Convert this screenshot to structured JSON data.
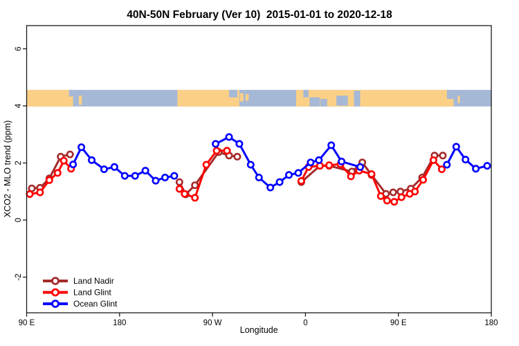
{
  "title": "40N-50N February (Ver 10)  2015-01-01 to 2020-12-18",
  "axes": {
    "x": {
      "label": "Longitude",
      "range_deg_east": [
        90,
        540
      ],
      "ticks": [
        {
          "lon": 90,
          "label": "90 E"
        },
        {
          "lon": 180,
          "label": "180"
        },
        {
          "lon": 270,
          "label": "90 W"
        },
        {
          "lon": 360,
          "label": "0"
        },
        {
          "lon": 450,
          "label": "90 E"
        },
        {
          "lon": 540,
          "label": "180"
        }
      ]
    },
    "y": {
      "label": "XCO2 - MLO trend (ppm)",
      "ticks": [
        "-2",
        "0",
        "2",
        "4",
        "6"
      ],
      "tick_values": [
        -2,
        0,
        2,
        4,
        6
      ],
      "range": [
        -3.25,
        6.8
      ]
    }
  },
  "legend": {
    "position": "bottom-left",
    "items": [
      {
        "label": "Land Nadir",
        "color": "#A52A2A"
      },
      {
        "label": "Land Glint",
        "color": "#FF0000"
      },
      {
        "label": "Ocean Glint",
        "color": "#0000FF"
      }
    ]
  },
  "chart_data": {
    "type": "line",
    "title": "40N-50N February (Ver 10)  2015-01-01 to 2020-12-18",
    "xlabel": "Longitude",
    "ylabel": "XCO2 - MLO trend (ppm)",
    "xlim_deg_east": [
      90,
      540
    ],
    "ylim": [
      -3.25,
      6.8
    ],
    "grid": false,
    "x_note": "x is continuous longitude in degrees east starting at 90E and wrapping past the dateline to 180 (540)",
    "map_band": {
      "description": "40N-50N latitude world strip: land=tan, ocean=blue-gray",
      "value_top": 4.56,
      "value_bottom": 3.98,
      "land_color": "#FBD086",
      "ocean_color": "#A5B8D6",
      "land_segments": [
        [
          90,
          135
        ],
        [
          236,
          296
        ],
        [
          351,
          503.5
        ]
      ],
      "ocean_patches": [
        [
          131,
          135,
          0.0,
          0.4
        ],
        [
          286,
          294,
          0.0,
          0.45
        ],
        [
          358,
          363,
          0.0,
          0.45
        ],
        [
          364,
          374,
          0.45,
          1.0
        ],
        [
          374.5,
          381,
          0.55,
          1.0
        ],
        [
          390,
          401,
          0.35,
          0.95
        ],
        [
          407,
          413,
          0.05,
          1.0
        ],
        [
          497,
          503.5,
          0.0,
          0.55
        ]
      ],
      "land_patches": [
        [
          140.5,
          143.5,
          0.35,
          0.9
        ],
        [
          296.5,
          300,
          0.2,
          0.7
        ],
        [
          302,
          305,
          0.25,
          0.65
        ],
        [
          507.5,
          509.5,
          0.35,
          0.8
        ]
      ]
    },
    "series": [
      {
        "id": "land-nadir",
        "name": "Land Nadir",
        "color": "#A52A2A",
        "marker": "open-circle",
        "segments": [
          [
            [
              95,
              1.11
            ],
            [
              103,
              1.13
            ],
            [
              112,
              1.46
            ],
            [
              123,
              2.22
            ],
            [
              132,
              2.3
            ]
          ],
          [
            [
              238,
              1.33
            ],
            [
              244,
              0.9
            ],
            [
              253,
              1.22
            ],
            [
              276,
              2.38
            ],
            [
              286,
              2.26
            ],
            [
              294,
              2.22
            ]
          ],
          [
            [
              356,
              1.33
            ],
            [
              374,
              1.9
            ],
            [
              383,
              1.9
            ],
            [
              405,
              1.7
            ],
            [
              415,
              2.02
            ],
            [
              424,
              1.58
            ],
            [
              438,
              0.92
            ],
            [
              445,
              0.97
            ],
            [
              452,
              1.0
            ],
            [
              462,
              1.1
            ],
            [
              473,
              1.49
            ],
            [
              485,
              2.26
            ],
            [
              493,
              2.26
            ]
          ]
        ]
      },
      {
        "id": "land-glint",
        "name": "Land Glint",
        "color": "#FF0000",
        "marker": "open-circle",
        "segments": [
          [
            [
              93,
              0.91
            ],
            [
              103,
              0.97
            ],
            [
              112,
              1.4
            ],
            [
              120,
              1.65
            ],
            [
              126,
              2.08
            ],
            [
              133,
              1.8
            ]
          ],
          [
            [
              238,
              1.09
            ],
            [
              243,
              0.92
            ],
            [
              253,
              0.78
            ],
            [
              264,
              1.94
            ],
            [
              274,
              2.43
            ],
            [
              284,
              2.43
            ]
          ],
          [
            [
              356,
              1.37
            ],
            [
              363,
              1.86
            ],
            [
              374,
              1.9
            ],
            [
              383,
              1.92
            ],
            [
              394,
              1.96
            ],
            [
              404,
              1.53
            ],
            [
              412,
              1.73
            ],
            [
              424,
              1.61
            ],
            [
              433,
              0.84
            ],
            [
              439,
              0.68
            ],
            [
              446,
              0.64
            ],
            [
              453,
              0.8
            ],
            [
              461,
              0.92
            ],
            [
              466,
              1.0
            ],
            [
              474,
              1.41
            ],
            [
              484,
              2.1
            ],
            [
              492,
              1.78
            ]
          ]
        ]
      },
      {
        "id": "ocean-glint",
        "name": "Ocean Glint",
        "color": "#0000FF",
        "marker": "open-circle",
        "segments": [
          [
            [
              135,
              1.95
            ],
            [
              143,
              2.55
            ],
            [
              153,
              2.1
            ],
            [
              165,
              1.78
            ],
            [
              175,
              1.86
            ],
            [
              185,
              1.55
            ],
            [
              195,
              1.55
            ],
            [
              205,
              1.73
            ],
            [
              215,
              1.38
            ],
            [
              224,
              1.49
            ],
            [
              233,
              1.55
            ]
          ],
          [
            [
              273,
              2.67
            ],
            [
              286,
              2.91
            ],
            [
              296,
              2.67
            ],
            [
              307,
              1.94
            ],
            [
              315,
              1.49
            ],
            [
              326,
              1.14
            ],
            [
              335,
              1.33
            ],
            [
              344,
              1.58
            ],
            [
              353,
              1.65
            ],
            [
              365,
              2.02
            ],
            [
              373,
              2.1
            ],
            [
              385,
              2.62
            ],
            [
              395,
              2.05
            ],
            [
              413,
              1.86
            ]
          ],
          [
            [
              497,
              1.94
            ],
            [
              506,
              2.57
            ],
            [
              515,
              2.12
            ],
            [
              525,
              1.8
            ],
            [
              536,
              1.9
            ]
          ]
        ]
      }
    ]
  }
}
